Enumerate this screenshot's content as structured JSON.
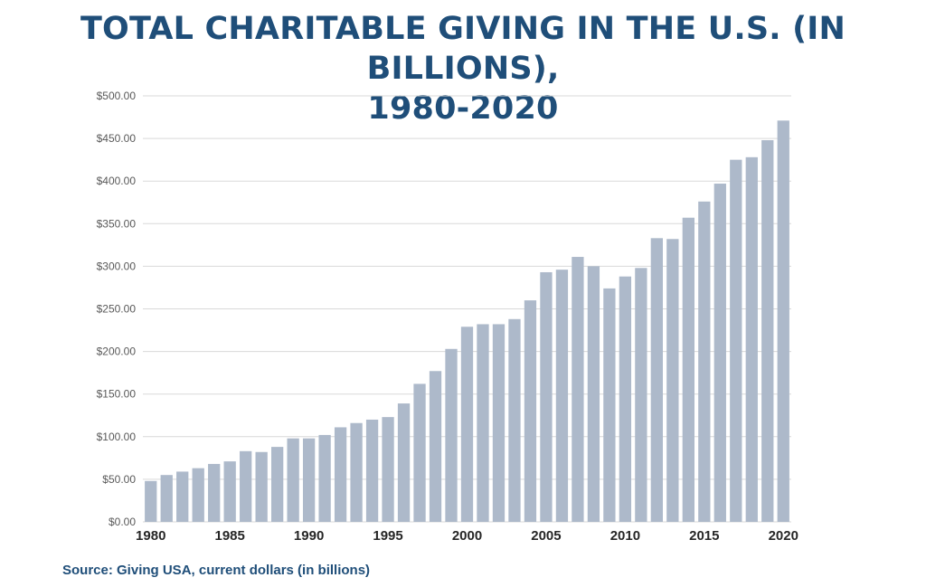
{
  "title_line1": "TOTAL CHARITABLE GIVING IN THE U.S. (IN BILLIONS),",
  "title_line2": "1980-2020",
  "source": "Source: Giving USA, current dollars (in billions)",
  "colors": {
    "bar": "#adb9ca",
    "title": "#1f4e79",
    "grid": "#d9d9d9"
  },
  "chart_data": {
    "type": "bar",
    "title": "TOTAL CHARITABLE GIVING IN THE U.S. (IN BILLIONS), 1980-2020",
    "xlabel": "",
    "ylabel": "",
    "ylim": [
      0,
      500
    ],
    "grid": true,
    "legend": "none",
    "y_tick_values": [
      0,
      50,
      100,
      150,
      200,
      250,
      300,
      350,
      400,
      450,
      500
    ],
    "y_tick_labels": [
      "$0.00",
      "$50.00",
      "$100.00",
      "$150.00",
      "$200.00",
      "$250.00",
      "$300.00",
      "$350.00",
      "$400.00",
      "$450.00",
      "$500.00"
    ],
    "x_tick_labels": [
      "1980",
      "1985",
      "1990",
      "1995",
      "2000",
      "2005",
      "2010",
      "2015",
      "2020"
    ],
    "categories": [
      "1980",
      "1981",
      "1982",
      "1983",
      "1984",
      "1985",
      "1986",
      "1987",
      "1988",
      "1989",
      "1990",
      "1991",
      "1992",
      "1993",
      "1994",
      "1995",
      "1996",
      "1997",
      "1998",
      "1999",
      "2000",
      "2001",
      "2002",
      "2003",
      "2004",
      "2005",
      "2006",
      "2007",
      "2008",
      "2009",
      "2010",
      "2011",
      "2012",
      "2013",
      "2014",
      "2015",
      "2016",
      "2017",
      "2018",
      "2019",
      "2020"
    ],
    "values": [
      48,
      55,
      59,
      63,
      68,
      71,
      83,
      82,
      88,
      98,
      98,
      102,
      111,
      116,
      120,
      123,
      139,
      162,
      177,
      203,
      229,
      232,
      232,
      238,
      260,
      293,
      296,
      311,
      300,
      274,
      288,
      298,
      333,
      332,
      357,
      376,
      397,
      425,
      428,
      448,
      471
    ]
  }
}
